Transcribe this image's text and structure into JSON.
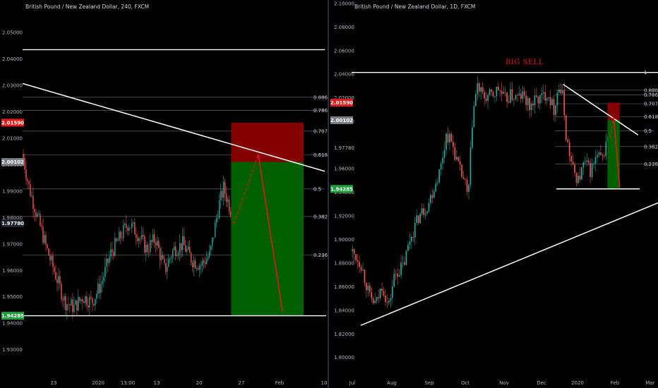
{
  "colors": {
    "background": "#000000",
    "up": "#26a69a",
    "down": "#ef5350",
    "level_line": "#ffffff",
    "fib_line": "#5d606b",
    "sell_zone": "#8b0000",
    "target_zone": "#006400",
    "badge_red": "#e01b1b",
    "badge_gray": "#7a7d85",
    "badge_green": "#1e9e3a",
    "dark_badge": "#1e222d"
  },
  "chart_data": [
    {
      "type": "candlestick",
      "title": "British Pound / New Zealand Dollar, 240, FXCM",
      "ylim": [
        1.9195,
        2.0575
      ],
      "y_ticks": [
        "2.05000",
        "2.04000",
        "2.03000",
        "2.02000",
        "2.01000",
        "2.00000",
        "1.99000",
        "1.98000",
        "1.97000",
        "1.96000",
        "1.95000",
        "1.94000",
        "1.93000"
      ],
      "y_tick_values": [
        2.05,
        2.04,
        2.03,
        2.02,
        2.01,
        2.0,
        1.99,
        1.98,
        1.97,
        1.96,
        1.95,
        1.94,
        1.93
      ],
      "x_ticks": [
        "23",
        "2020",
        "13:00",
        "13",
        "20",
        "27",
        "Feb",
        "10"
      ],
      "price_badges": [
        {
          "label": "2.01590",
          "value": 2.0159,
          "color": "red"
        },
        {
          "label": "2.00102",
          "value": 2.00102,
          "color": "gray"
        },
        {
          "label": "1.97780",
          "value": 1.9778,
          "color": "dark"
        },
        {
          "label": "1.94285",
          "value": 1.94285,
          "color": "green"
        }
      ],
      "fib_levels": [
        {
          "label": "0.886",
          "value": 2.0255
        },
        {
          "label": "0.786",
          "value": 2.0205
        },
        {
          "label": "0.707",
          "value": 2.0127
        },
        {
          "label": "0.618",
          "value": 2.0037
        },
        {
          "label": "0.5",
          "value": 1.9908
        },
        {
          "label": "0.382",
          "value": 1.9804
        },
        {
          "label": "0.236",
          "value": 1.9658
        }
      ],
      "resistance": 2.0435,
      "support": 1.94285,
      "trendline": {
        "x0": 0.0,
        "y0": 2.0307,
        "x1": 1.0,
        "y1": 1.9975
      },
      "sell_zone": {
        "x0": 0.69,
        "x1": 0.93,
        "top": 2.0159,
        "bottom": 2.00102
      },
      "target_zone": {
        "x0": 0.69,
        "x1": 0.93,
        "top": 2.00102,
        "bottom": 1.94285
      },
      "projection": [
        {
          "x": 0.7,
          "y": 1.9778
        },
        {
          "x": 0.78,
          "y": 2.0038
        },
        {
          "x": 0.86,
          "y": 1.9445
        }
      ],
      "path": [
        [
          0,
          2.004
        ],
        [
          0.02,
          1.992
        ],
        [
          0.05,
          1.98
        ],
        [
          0.08,
          1.968
        ],
        [
          0.11,
          1.958
        ],
        [
          0.14,
          1.948
        ],
        [
          0.17,
          1.946
        ],
        [
          0.2,
          1.95
        ],
        [
          0.23,
          1.948
        ],
        [
          0.26,
          1.955
        ],
        [
          0.29,
          1.966
        ],
        [
          0.32,
          1.972
        ],
        [
          0.35,
          1.978
        ],
        [
          0.38,
          1.974
        ],
        [
          0.41,
          1.968
        ],
        [
          0.44,
          1.972
        ],
        [
          0.47,
          1.96
        ],
        [
          0.5,
          1.968
        ],
        [
          0.53,
          1.97
        ],
        [
          0.56,
          1.964
        ],
        [
          0.59,
          1.962
        ],
        [
          0.62,
          1.966
        ],
        [
          0.65,
          1.985
        ],
        [
          0.665,
          1.991
        ],
        [
          0.68,
          1.986
        ],
        [
          0.7,
          1.979
        ]
      ],
      "x_end": 0.7,
      "seed": 7
    },
    {
      "type": "candlestick",
      "title": "British Pound / New Zealand Dollar, 1D, FXCM",
      "annotation": "BIG SELL",
      "ylim": [
        1.7855,
        2.1005
      ],
      "y_ticks": [
        "2.10000",
        "2.08000",
        "2.06000",
        "2.04000",
        "2.02000",
        "2.00000",
        "1.97780",
        "1.96000",
        "1.94000",
        "1.92000",
        "1.90000",
        "1.88000",
        "1.86000",
        "1.84000",
        "1.82000",
        "1.80000"
      ],
      "y_tick_values": [
        2.1,
        2.08,
        2.06,
        2.04,
        2.02,
        2.0,
        1.9778,
        1.96,
        1.94,
        1.92,
        1.9,
        1.88,
        1.86,
        1.84,
        1.82,
        1.8
      ],
      "x_ticks": [
        "Jul",
        "Aug",
        "Sep",
        "Oct",
        "Nov",
        "Dec",
        "2020",
        "Feb",
        "Mar"
      ],
      "price_badges": [
        {
          "label": "2.01590",
          "value": 2.0159,
          "color": "red"
        },
        {
          "label": "2.00102",
          "value": 2.00102,
          "color": "gray"
        },
        {
          "label": "1.94285",
          "value": 1.94285,
          "color": "green"
        }
      ],
      "fib_levels": [
        {
          "label": "1",
          "value": 2.0415
        },
        {
          "label": "0.886",
          "value": 2.0265
        },
        {
          "label": "0.786",
          "value": 2.0225
        },
        {
          "label": "0.707",
          "value": 2.015
        },
        {
          "label": "0.618",
          "value": 2.004
        },
        {
          "label": "0.5",
          "value": 1.992
        },
        {
          "label": "0.382",
          "value": 1.9787
        },
        {
          "label": "0.236",
          "value": 1.964
        }
      ],
      "resistance": 2.0415,
      "support": 1.94285,
      "trendline_down": {
        "x0": 0.69,
        "y0": 2.0315,
        "x1": 0.935,
        "y1": 1.9885
      },
      "trendline_up": {
        "x0": 0.03,
        "y0": 1.8272,
        "x1": 1.0,
        "y1": 1.931
      },
      "sell_zone": {
        "x0": 0.835,
        "x1": 0.875,
        "top": 2.0159,
        "bottom": 2.00102
      },
      "target_zone": {
        "x0": 0.835,
        "x1": 0.875,
        "top": 2.00102,
        "bottom": 1.94285
      },
      "projection": [
        {
          "x": 0.845,
          "y": 1.986
        },
        {
          "x": 0.855,
          "y": 2.004
        },
        {
          "x": 0.875,
          "y": 1.944
        }
      ],
      "path": [
        [
          0,
          1.89
        ],
        [
          0.03,
          1.88
        ],
        [
          0.06,
          1.85
        ],
        [
          0.08,
          1.845
        ],
        [
          0.1,
          1.862
        ],
        [
          0.12,
          1.842
        ],
        [
          0.14,
          1.87
        ],
        [
          0.17,
          1.878
        ],
        [
          0.19,
          1.9
        ],
        [
          0.22,
          1.92
        ],
        [
          0.25,
          1.93
        ],
        [
          0.27,
          1.945
        ],
        [
          0.29,
          1.96
        ],
        [
          0.31,
          1.99
        ],
        [
          0.33,
          1.98
        ],
        [
          0.35,
          1.96
        ],
        [
          0.37,
          1.948
        ],
        [
          0.38,
          1.932
        ],
        [
          0.395,
          2.005
        ],
        [
          0.41,
          2.03
        ],
        [
          0.43,
          2.02
        ],
        [
          0.46,
          2.022
        ],
        [
          0.48,
          2.028
        ],
        [
          0.5,
          2.018
        ],
        [
          0.52,
          2.022
        ],
        [
          0.54,
          2.02
        ],
        [
          0.56,
          2.022
        ],
        [
          0.58,
          2.012
        ],
        [
          0.6,
          2.018
        ],
        [
          0.62,
          2.02
        ],
        [
          0.64,
          2.025
        ],
        [
          0.66,
          2.01
        ],
        [
          0.675,
          2.03
        ],
        [
          0.69,
          2.02
        ],
        [
          0.7,
          1.988
        ],
        [
          0.72,
          1.96
        ],
        [
          0.74,
          1.95
        ],
        [
          0.76,
          1.965
        ],
        [
          0.78,
          1.958
        ],
        [
          0.8,
          1.97
        ],
        [
          0.82,
          1.968
        ],
        [
          0.84,
          1.995
        ],
        [
          0.85,
          1.988
        ]
      ],
      "x_end": 0.85,
      "seed": 13
    }
  ]
}
